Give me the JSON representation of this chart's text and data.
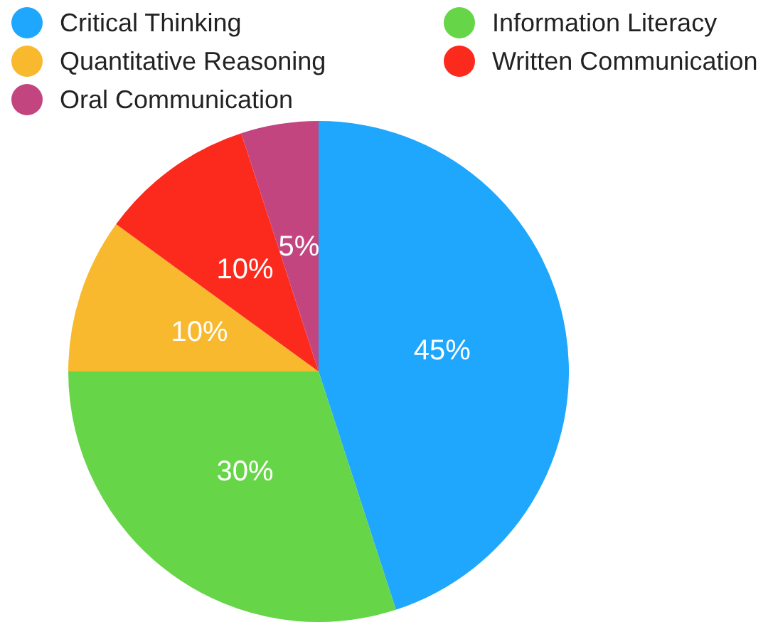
{
  "chart_data": {
    "type": "pie",
    "categories": [
      "Critical Thinking",
      "Information Literacy",
      "Quantitative Reasoning",
      "Written Communication",
      "Oral Communication"
    ],
    "values": [
      45,
      30,
      10,
      10,
      5
    ],
    "colors": [
      "#1ea7fd",
      "#66d548",
      "#f8b92e",
      "#fc2a1c",
      "#c3457f"
    ],
    "value_labels": [
      "45%",
      "30%",
      "10%",
      "10%",
      "5%"
    ],
    "legend": "top"
  }
}
